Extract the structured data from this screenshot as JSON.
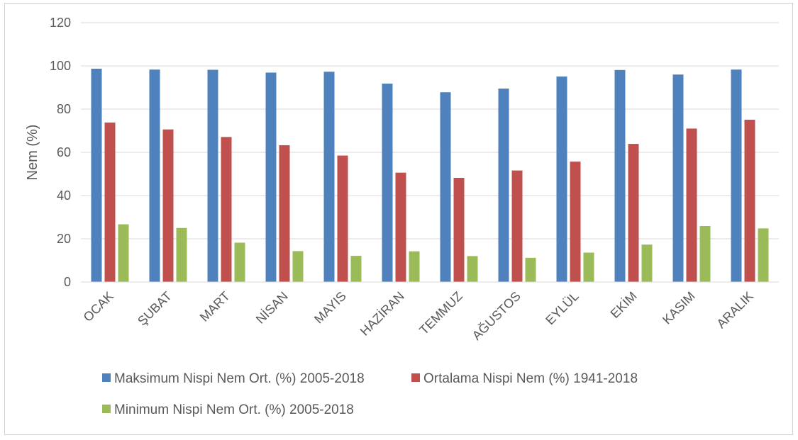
{
  "chart_data": {
    "type": "bar",
    "ylabel": "Nem (%)",
    "xlabel": "",
    "ylim": [
      0,
      120
    ],
    "yticks": [
      0,
      20,
      40,
      60,
      80,
      100,
      120
    ],
    "grid": true,
    "legend_position": "bottom",
    "categories": [
      "OCAK",
      "ŞUBAT",
      "MART",
      "NİSAN",
      "MAYIS",
      "HAZİRAN",
      "TEMMUZ",
      "AĞUSTOS",
      "EYLÜL",
      "EKİM",
      "KASIM",
      "ARALIK"
    ],
    "series": [
      {
        "name": "Maksimum Nispi Nem Ort. (%) 2005-2018",
        "color": "#4f81bd",
        "values": [
          98.7,
          98.3,
          98.2,
          96.9,
          97.3,
          91.8,
          87.8,
          89.5,
          95.1,
          98.1,
          96.0,
          98.3
        ]
      },
      {
        "name": "Ortalama Nispi Nem (%) 1941-2018",
        "color": "#c0504d",
        "values": [
          73.8,
          70.6,
          67.1,
          63.3,
          58.5,
          50.6,
          48.2,
          51.6,
          55.7,
          63.9,
          71.0,
          75.1
        ]
      },
      {
        "name": "Minimum Nispi Nem Ort. (%) 2005-2018",
        "color": "#9bbb59",
        "values": [
          26.7,
          25.0,
          18.2,
          14.3,
          12.1,
          14.2,
          12.0,
          11.2,
          13.6,
          17.3,
          25.9,
          24.8
        ]
      }
    ]
  }
}
